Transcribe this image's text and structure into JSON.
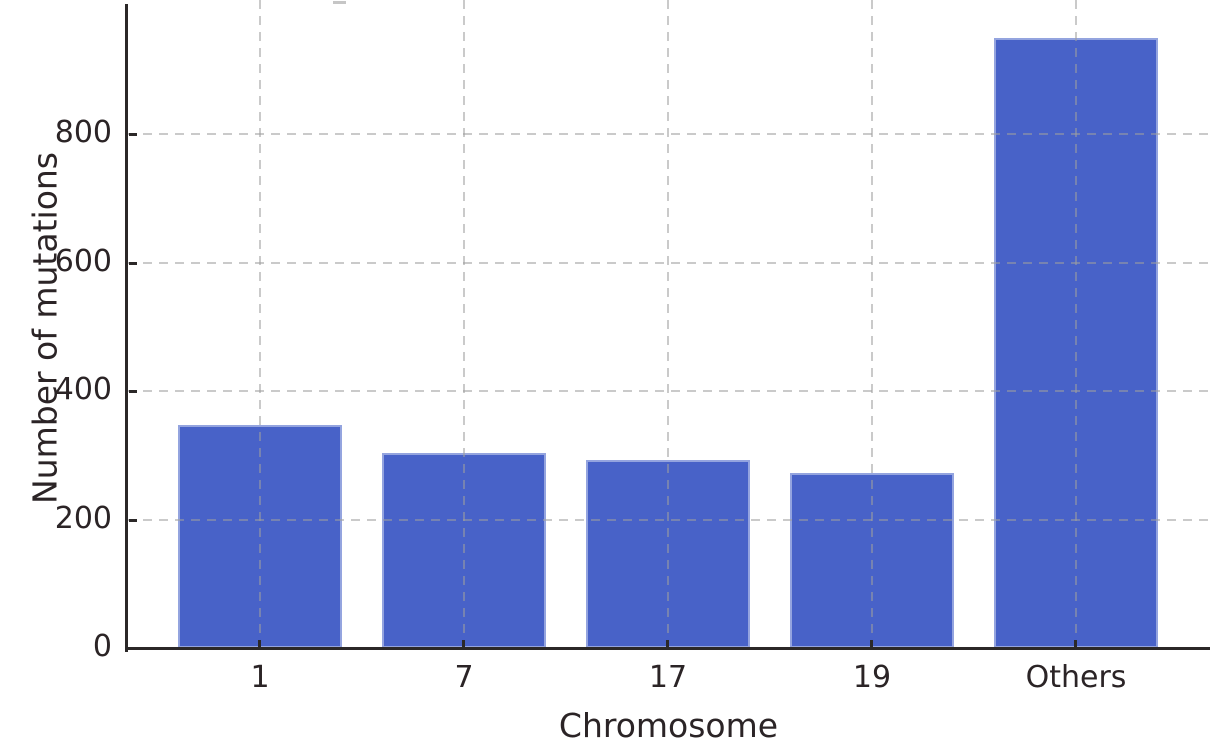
{
  "chart_data": {
    "type": "bar",
    "title": "",
    "xlabel": "Chromosome",
    "ylabel": "Number of mutations",
    "categories": [
      "1",
      "7",
      "17",
      "19",
      "Others"
    ],
    "values": [
      347,
      303,
      293,
      272,
      950
    ],
    "ylim": [
      0,
      1000
    ],
    "yticks": [
      0,
      200,
      400,
      600,
      800
    ],
    "grid": "dashed gridlines on both axes, drawn over bars",
    "legend": "none",
    "tick_direction": "inward",
    "colors": {
      "bar": "#4862c8",
      "bar_edge": "#aeb9e6",
      "axis": "#2b2828",
      "grid": "#9e9e9e",
      "text": "#2b2426",
      "background": "#ffffff"
    }
  }
}
